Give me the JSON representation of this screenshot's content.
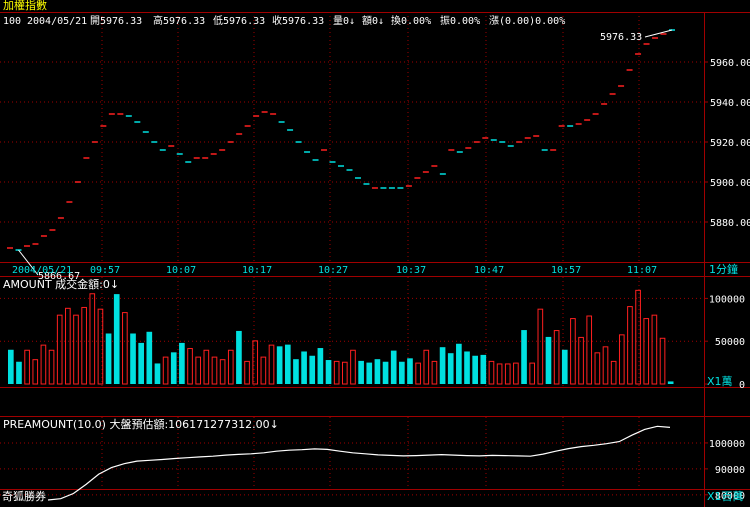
{
  "window": {
    "title": "加權指數"
  },
  "info_bar": {
    "code": "100",
    "date": "2004/05/21",
    "open": "開5976.33",
    "high": "高5976.33",
    "low": "低5976.33",
    "close": "收5976.33",
    "volume": "量0↓",
    "amount": "額0↓",
    "turnover": "換0.00%",
    "amplitude": "振0.00%",
    "change": "漲(0.00)0.00%"
  },
  "colors": {
    "background": "#000000",
    "frame": "#a00000",
    "grid": "#a00000",
    "up": "#ff2020",
    "down": "#00e0e0",
    "text": "#ffffff",
    "title": "#ffff00",
    "axis_text": "#00e0e0",
    "line": "#ffffff"
  },
  "chart_data": [
    {
      "type": "candlestick",
      "name": "price",
      "ylim": [
        5860,
        5985
      ],
      "y_ticks": [
        "5880.00",
        "5900.00",
        "5920.00",
        "5940.00",
        "5960.00"
      ],
      "x_ticks": [
        "2004/05/21",
        "09:57",
        "10:07",
        "10:17",
        "10:27",
        "10:37",
        "10:47",
        "10:57",
        "11:07"
      ],
      "period_label": "1分鐘",
      "annotations": {
        "high": "5976.33",
        "low": "5866.67"
      },
      "values": [
        5867,
        5866,
        5868,
        5869,
        5873,
        5876,
        5882,
        5890,
        5900,
        5912,
        5920,
        5928,
        5934,
        5934,
        5933,
        5930,
        5925,
        5920,
        5916,
        5918,
        5914,
        5910,
        5912,
        5912,
        5914,
        5916,
        5920,
        5924,
        5928,
        5933,
        5935,
        5934,
        5930,
        5926,
        5920,
        5915,
        5911,
        5916,
        5910,
        5908,
        5906,
        5902,
        5899,
        5897,
        5897,
        5897,
        5897,
        5898,
        5902,
        5905,
        5908,
        5904,
        5916,
        5915,
        5917,
        5920,
        5922,
        5921,
        5920,
        5918,
        5920,
        5922,
        5923,
        5916,
        5916,
        5928,
        5928,
        5929,
        5931,
        5934,
        5939,
        5944,
        5948,
        5956,
        5964,
        5969,
        5972,
        5974,
        5976
      ],
      "up": [
        1,
        0,
        1,
        1,
        1,
        1,
        1,
        1,
        1,
        1,
        1,
        1,
        1,
        1,
        0,
        0,
        0,
        0,
        0,
        1,
        0,
        0,
        1,
        1,
        1,
        1,
        1,
        1,
        1,
        1,
        1,
        1,
        0,
        0,
        0,
        0,
        0,
        1,
        0,
        0,
        0,
        0,
        0,
        1,
        0,
        0,
        0,
        1,
        1,
        1,
        1,
        0,
        1,
        0,
        1,
        1,
        1,
        0,
        0,
        0,
        1,
        1,
        1,
        0,
        1,
        1,
        0,
        1,
        1,
        1,
        1,
        1,
        1,
        1,
        1,
        1,
        1,
        1,
        0
      ]
    },
    {
      "type": "bar",
      "name": "AMOUNT",
      "label": "AMOUNT 成交金額:0↓",
      "unit_label": "X1萬",
      "ylim": [
        0,
        125000
      ],
      "y_ticks": [
        "0",
        "50000",
        "100000"
      ],
      "values": [
        40000,
        26000,
        40000,
        29000,
        46000,
        40000,
        81000,
        89000,
        81000,
        90000,
        106000,
        88000,
        59000,
        105000,
        84000,
        59000,
        48000,
        61000,
        24000,
        32000,
        37000,
        48000,
        42000,
        32000,
        40000,
        32000,
        29000,
        40000,
        62000,
        27000,
        51000,
        32000,
        46000,
        44000,
        46000,
        29000,
        38000,
        33000,
        42000,
        28000,
        27000,
        26000,
        40000,
        27000,
        25000,
        29000,
        26000,
        39000,
        26000,
        30000,
        25000,
        40000,
        27000,
        43000,
        36000,
        47000,
        38000,
        33000,
        34000,
        27000,
        24000,
        24000,
        25000,
        63000,
        25000,
        88000,
        55000,
        63000,
        40000,
        77000,
        55000,
        80000,
        37000,
        44000,
        27000,
        58000,
        91000,
        110000,
        77000,
        81000,
        54000,
        3000
      ],
      "up": [
        0,
        0,
        1,
        1,
        1,
        1,
        1,
        1,
        1,
        1,
        1,
        1,
        0,
        0,
        1,
        0,
        0,
        0,
        0,
        1,
        0,
        0,
        1,
        1,
        1,
        1,
        1,
        1,
        0,
        1,
        1,
        1,
        1,
        0,
        0,
        0,
        0,
        0,
        0,
        0,
        1,
        1,
        1,
        0,
        0,
        0,
        0,
        0,
        0,
        0,
        1,
        1,
        1,
        0,
        0,
        0,
        0,
        0,
        0,
        1,
        1,
        1,
        1,
        0,
        1,
        1,
        0,
        1,
        0,
        1,
        1,
        1,
        1,
        1,
        1,
        1,
        1,
        1,
        1,
        1,
        1,
        0
      ]
    },
    {
      "type": "line",
      "name": "PREAMOUNT",
      "label": "PREAMOUNT(10.0) 大盤預估額:106171277312.00↓",
      "unit_label": "X1百萬",
      "ylim": [
        78000,
        110000
      ],
      "y_ticks": [
        "80000",
        "90000",
        "100000"
      ],
      "values": [
        78000,
        78500,
        80500,
        84000,
        88000,
        90500,
        92000,
        93000,
        93300,
        93600,
        94000,
        94300,
        94600,
        94900,
        95300,
        95600,
        95800,
        96200,
        96800,
        97200,
        97400,
        97700,
        97500,
        96800,
        96200,
        95800,
        95400,
        95200,
        95000,
        95100,
        95300,
        95500,
        95300,
        95100,
        95000,
        95200,
        95100,
        95000,
        94900,
        95700,
        96800,
        97800,
        98600,
        99100,
        99700,
        100500,
        103000,
        105200,
        106400,
        106000
      ]
    }
  ],
  "footer": {
    "label": "奇狐勝券"
  }
}
